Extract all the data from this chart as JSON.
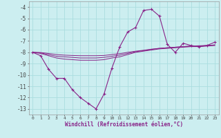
{
  "bg_color": "#cceef0",
  "grid_color": "#aadddf",
  "line_color": "#882288",
  "x_hours": [
    0,
    1,
    2,
    3,
    4,
    5,
    6,
    7,
    8,
    9,
    10,
    11,
    12,
    13,
    14,
    15,
    16,
    17,
    18,
    19,
    20,
    21,
    22,
    23
  ],
  "windchill_main": [
    -8.0,
    -8.3,
    -9.5,
    -10.3,
    -10.3,
    -11.3,
    -12.0,
    -12.5,
    -13.0,
    -11.7,
    -9.4,
    -7.5,
    -6.2,
    -5.8,
    -4.3,
    -4.2,
    -4.8,
    -7.3,
    -8.0,
    -7.2,
    -7.4,
    -7.5,
    -7.4,
    -7.1
  ],
  "line2": [
    -8.0,
    -8.1,
    -8.3,
    -8.5,
    -8.6,
    -8.65,
    -8.7,
    -8.7,
    -8.7,
    -8.65,
    -8.5,
    -8.4,
    -8.2,
    -8.0,
    -7.9,
    -7.8,
    -7.7,
    -7.65,
    -7.6,
    -7.55,
    -7.5,
    -7.5,
    -7.45,
    -7.4
  ],
  "line3": [
    -8.0,
    -8.05,
    -8.2,
    -8.35,
    -8.4,
    -8.45,
    -8.5,
    -8.5,
    -8.5,
    -8.45,
    -8.35,
    -8.25,
    -8.1,
    -7.95,
    -7.85,
    -7.75,
    -7.65,
    -7.6,
    -7.55,
    -7.5,
    -7.45,
    -7.45,
    -7.4,
    -7.35
  ],
  "line4": [
    -8.0,
    -8.02,
    -8.1,
    -8.2,
    -8.25,
    -8.28,
    -8.3,
    -8.3,
    -8.3,
    -8.28,
    -8.2,
    -8.12,
    -8.0,
    -7.9,
    -7.82,
    -7.72,
    -7.65,
    -7.6,
    -7.55,
    -7.5,
    -7.45,
    -7.42,
    -7.4,
    -7.35
  ],
  "ylim": [
    -13.5,
    -3.5
  ],
  "yticks": [
    -13,
    -12,
    -11,
    -10,
    -9,
    -8,
    -7,
    -6,
    -5,
    -4
  ],
  "xlabel": "Windchill (Refroidissement éolien,°C)",
  "figsize": [
    3.2,
    2.0
  ],
  "dpi": 100
}
